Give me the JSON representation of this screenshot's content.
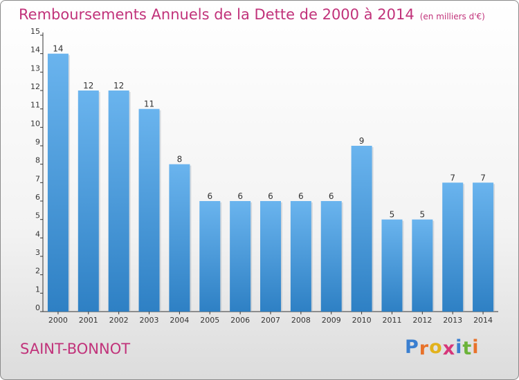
{
  "chart_data": {
    "type": "bar",
    "title": "Remboursements Annuels de la Dette de 2000 à 2014",
    "unit_label": "(en milliers d'€)",
    "categories": [
      "2000",
      "2001",
      "2002",
      "2003",
      "2004",
      "2005",
      "2006",
      "2007",
      "2008",
      "2009",
      "2010",
      "2011",
      "2012",
      "2013",
      "2014"
    ],
    "values": [
      14,
      12,
      12,
      11,
      8,
      6,
      6,
      6,
      6,
      6,
      9,
      5,
      5,
      7,
      7
    ],
    "ylim": [
      0,
      15
    ],
    "yticks": [
      0,
      1,
      2,
      3,
      4,
      5,
      6,
      7,
      8,
      9,
      10,
      11,
      12,
      13,
      14,
      15
    ],
    "xlabel": "",
    "ylabel": "",
    "grid": false,
    "bar_color_top": "#6ab4ee",
    "bar_color_bottom": "#2e80c4",
    "data_labels": true
  },
  "commune_name": "SAINT-BONNOT",
  "logo": {
    "text": "Proxiti",
    "letter_colors": [
      "#3a7fd0",
      "#e8722a",
      "#e2b21d",
      "#d6367a",
      "#3a7fd0",
      "#6cb33a",
      "#e8722a"
    ]
  },
  "colors": {
    "title": "#c1327a",
    "axis": "#333333"
  }
}
